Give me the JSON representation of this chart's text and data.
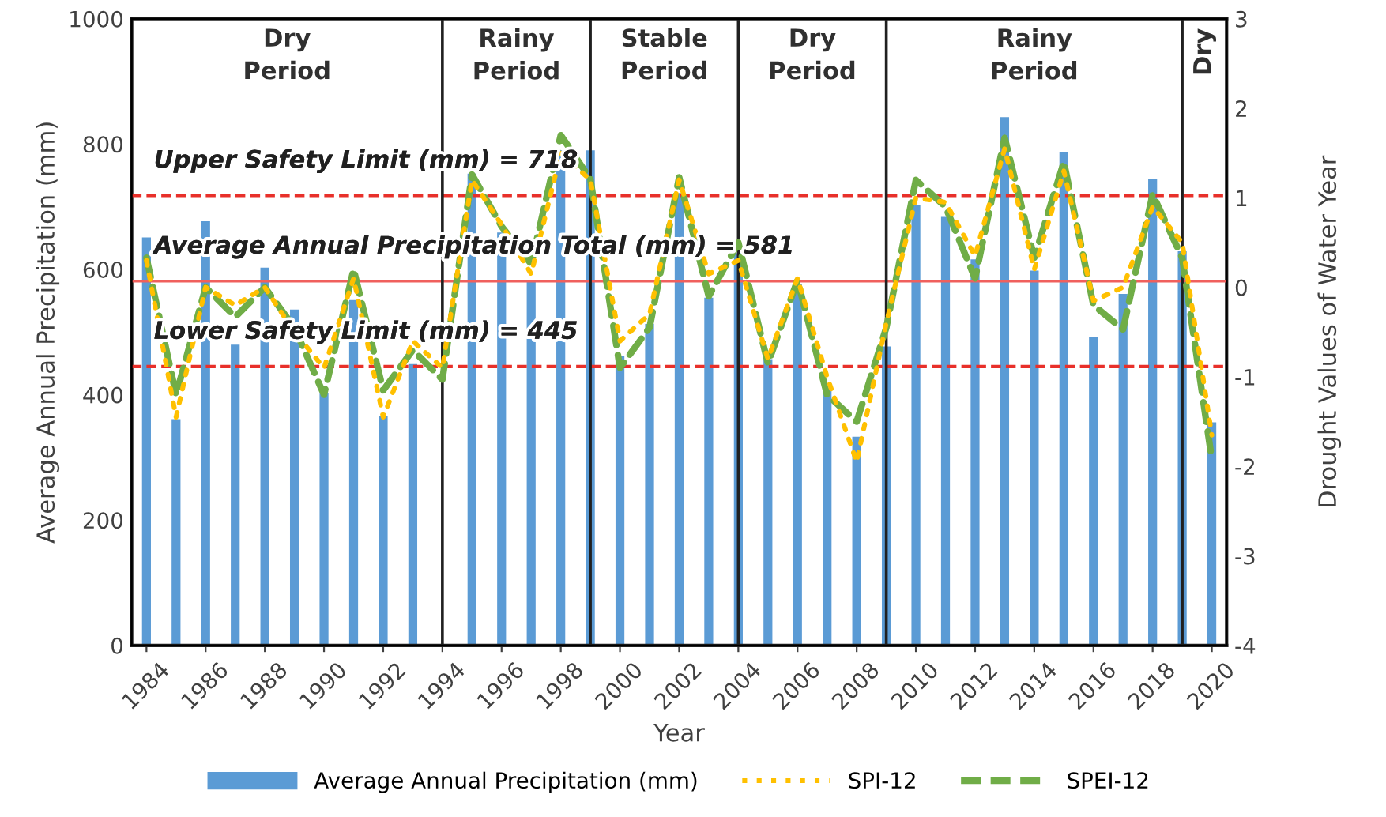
{
  "chart_data": {
    "type": "bar",
    "xlabel": "Year",
    "ylabel": "Average Annual Precipitation (mm)",
    "y2label": "Drought Values of Water Year",
    "x": [
      1984,
      1985,
      1986,
      1987,
      1988,
      1989,
      1990,
      1991,
      1992,
      1993,
      1994,
      1995,
      1996,
      1997,
      1998,
      1999,
      2000,
      2001,
      2002,
      2003,
      2004,
      2005,
      2006,
      2007,
      2008,
      2009,
      2010,
      2011,
      2012,
      2013,
      2014,
      2015,
      2016,
      2017,
      2018,
      2019,
      2020
    ],
    "series": [
      {
        "name": "Average Annual Precipitation (mm)",
        "color": "#5b9bd5",
        "values": [
          651,
          361,
          677,
          480,
          603,
          536,
          403,
          551,
          366,
          449,
          null,
          753,
          659,
          581,
          790,
          790,
          462,
          513,
          722,
          555,
          626,
          457,
          576,
          407,
          333,
          477,
          702,
          684,
          616,
          843,
          598,
          788,
          492,
          561,
          745,
          629,
          356
        ]
      },
      {
        "name": "SPI-12",
        "type": "line",
        "axis": "y2",
        "color": "#ffc000",
        "line_style": "dotted",
        "values": [
          0.3,
          -1.45,
          0.0,
          -0.2,
          0.0,
          -0.5,
          -0.9,
          0.1,
          -1.45,
          -0.6,
          -0.9,
          1.2,
          0.7,
          0.15,
          1.5,
          1.2,
          -0.6,
          -0.3,
          1.2,
          0.15,
          0.3,
          -0.8,
          0.1,
          -1.0,
          -1.95,
          -0.4,
          1.0,
          0.95,
          0.35,
          1.55,
          0.2,
          1.3,
          -0.15,
          0.0,
          0.9,
          0.5,
          -1.65
        ]
      },
      {
        "name": "SPEI-12",
        "type": "line",
        "axis": "y2",
        "color": "#70ad47",
        "line_style": "dashed",
        "values": [
          0.33,
          -1.2,
          0.0,
          -0.33,
          0.0,
          -0.45,
          -1.2,
          0.2,
          -1.15,
          -0.7,
          -1.03,
          1.26,
          0.68,
          0.26,
          1.7,
          1.21,
          -0.9,
          -0.45,
          1.23,
          -0.1,
          0.5,
          -0.85,
          0.08,
          -1.2,
          -1.5,
          -0.45,
          1.2,
          0.9,
          0.1,
          1.67,
          0.33,
          1.4,
          -0.2,
          -0.47,
          1.04,
          0.33,
          -1.92
        ]
      }
    ],
    "xlim": [
      1983.5,
      2020.5
    ],
    "xticks": [
      1984,
      1986,
      1988,
      1990,
      1992,
      1994,
      1996,
      1998,
      2000,
      2002,
      2004,
      2006,
      2008,
      2010,
      2012,
      2014,
      2016,
      2018,
      2020
    ],
    "ylim": [
      0,
      1000
    ],
    "yticks": [
      0,
      200,
      400,
      600,
      800,
      1000
    ],
    "y2lim": [
      -4,
      3
    ],
    "y2ticks": [
      -4,
      -3,
      -2,
      -1,
      0,
      1,
      2,
      3
    ],
    "ref_lines": [
      {
        "axis": "y",
        "value": 718,
        "label": "Upper Safety Limit (mm) = 718",
        "color": "#e8302a",
        "line_style": "dashed"
      },
      {
        "axis": "y",
        "value": 581,
        "label": "Average Annual Precipitation Total (mm) = 581",
        "color": "#f0605d",
        "line_style": "solid"
      },
      {
        "axis": "y",
        "value": 445,
        "label": "Lower Safety Limit (mm) = 445",
        "color": "#e8302a",
        "line_style": "dashed"
      },
      {
        "axis": "x",
        "value": 1994,
        "color": "#202020"
      },
      {
        "axis": "x",
        "value": 1999,
        "color": "#202020"
      },
      {
        "axis": "x",
        "value": 2004,
        "color": "#202020"
      },
      {
        "axis": "x",
        "value": 2009,
        "color": "#202020"
      },
      {
        "axis": "x",
        "value": 2019,
        "color": "#202020"
      }
    ],
    "annotations": [
      "Dry\nPeriod",
      "Rainy\nPeriod",
      "Stable\nPeriod",
      "Dry\nPeriod",
      "Rainy\nPeriod",
      "Dry"
    ],
    "grid": false,
    "legend": "bottom",
    "marker": "none"
  }
}
